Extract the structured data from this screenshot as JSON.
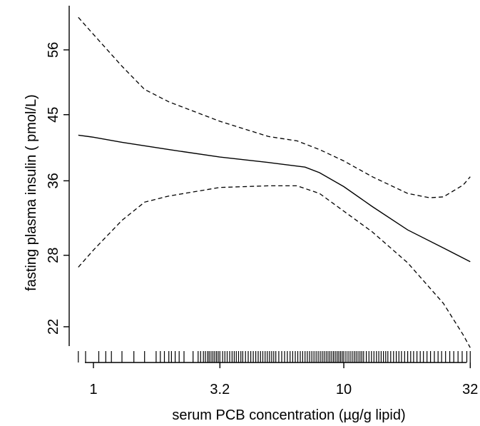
{
  "chart_data": {
    "type": "line",
    "title": "",
    "xlabel": "serum PCB concentration (µg/g lipid)",
    "ylabel": "fasting plasma insulin ( pmol/L)",
    "x_scale": "log",
    "y_scale": "log",
    "xlim": [
      0.8,
      35
    ],
    "ylim": [
      19.5,
      65
    ],
    "x_ticks": [
      {
        "value": 1,
        "label": "1"
      },
      {
        "value": 3.2,
        "label": "3.2"
      },
      {
        "value": 10,
        "label": "10"
      },
      {
        "value": 32,
        "label": "32"
      }
    ],
    "y_ticks": [
      {
        "value": 22,
        "label": "22"
      },
      {
        "value": 28,
        "label": "28"
      },
      {
        "value": 36,
        "label": "36"
      },
      {
        "value": 45,
        "label": "45"
      },
      {
        "value": 56,
        "label": "56"
      }
    ],
    "grid": false,
    "series": [
      {
        "style": "solid",
        "x": [
          0.87,
          1.0,
          1.3,
          2.0,
          3.2,
          5.0,
          7.0,
          8.0,
          10.0,
          13.0,
          18.0,
          25.0,
          32.0
        ],
        "y": [
          42.0,
          41.7,
          41.0,
          40.0,
          39.0,
          38.3,
          37.7,
          37.0,
          35.3,
          33.0,
          30.5,
          28.7,
          27.4
        ]
      },
      {
        "style": "dashed",
        "x": [
          0.87,
          1.0,
          1.3,
          1.6,
          2.0,
          3.2,
          5.0,
          6.5,
          8.0,
          10.0,
          13.0,
          18.0,
          22.0,
          25.0,
          30.0,
          32.0
        ],
        "y": [
          62.5,
          59.0,
          53.0,
          49.0,
          47.0,
          44.0,
          41.8,
          41.2,
          40.0,
          38.5,
          36.5,
          34.5,
          34.0,
          34.1,
          35.5,
          36.5
        ]
      },
      {
        "style": "dashed",
        "x": [
          0.87,
          1.0,
          1.3,
          1.6,
          2.0,
          3.2,
          5.0,
          6.5,
          8.0,
          10.0,
          13.0,
          18.0,
          25.0,
          30.0,
          32.0
        ],
        "y": [
          26.9,
          28.5,
          31.5,
          33.5,
          34.2,
          35.2,
          35.4,
          35.4,
          34.5,
          32.5,
          30.3,
          27.3,
          23.8,
          21.4,
          20.5
        ]
      }
    ],
    "rug_x": [
      0.87,
      0.93,
      1.05,
      1.12,
      1.18,
      1.3,
      1.45,
      1.6,
      1.78,
      1.85,
      1.92,
      2.0,
      2.05,
      2.12,
      2.2,
      2.3,
      2.5,
      2.62,
      2.68,
      2.75,
      2.8,
      2.86,
      2.9,
      2.95,
      3.0,
      3.05,
      3.1,
      3.15,
      3.2,
      3.28,
      3.35,
      3.42,
      3.5,
      3.58,
      3.65,
      3.72,
      3.8,
      3.88,
      3.95,
      4.05,
      4.15,
      4.25,
      4.35,
      4.45,
      4.55,
      4.65,
      4.75,
      4.85,
      4.95,
      5.05,
      5.15,
      5.25,
      5.35,
      5.5,
      5.65,
      5.8,
      5.95,
      6.1,
      6.25,
      6.4,
      6.55,
      6.7,
      6.85,
      7.0,
      7.15,
      7.3,
      7.45,
      7.6,
      7.75,
      7.9,
      8.05,
      8.2,
      8.35,
      8.5,
      8.65,
      8.8,
      8.95,
      9.1,
      9.25,
      9.4,
      9.55,
      9.7,
      9.85,
      10.0,
      10.2,
      10.4,
      10.6,
      10.8,
      11.0,
      11.2,
      11.4,
      11.6,
      11.8,
      12.0,
      12.3,
      12.6,
      12.9,
      13.2,
      13.5,
      13.8,
      14.1,
      14.4,
      14.7,
      15.0,
      15.4,
      15.8,
      16.2,
      16.6,
      17.0,
      17.5,
      18.0,
      18.5,
      19.0,
      19.6,
      20.2,
      20.8,
      21.5,
      22.2,
      23.0,
      23.8,
      24.6,
      25.5,
      26.5,
      27.5,
      28.6,
      29.7,
      31.0,
      32.0
    ]
  }
}
